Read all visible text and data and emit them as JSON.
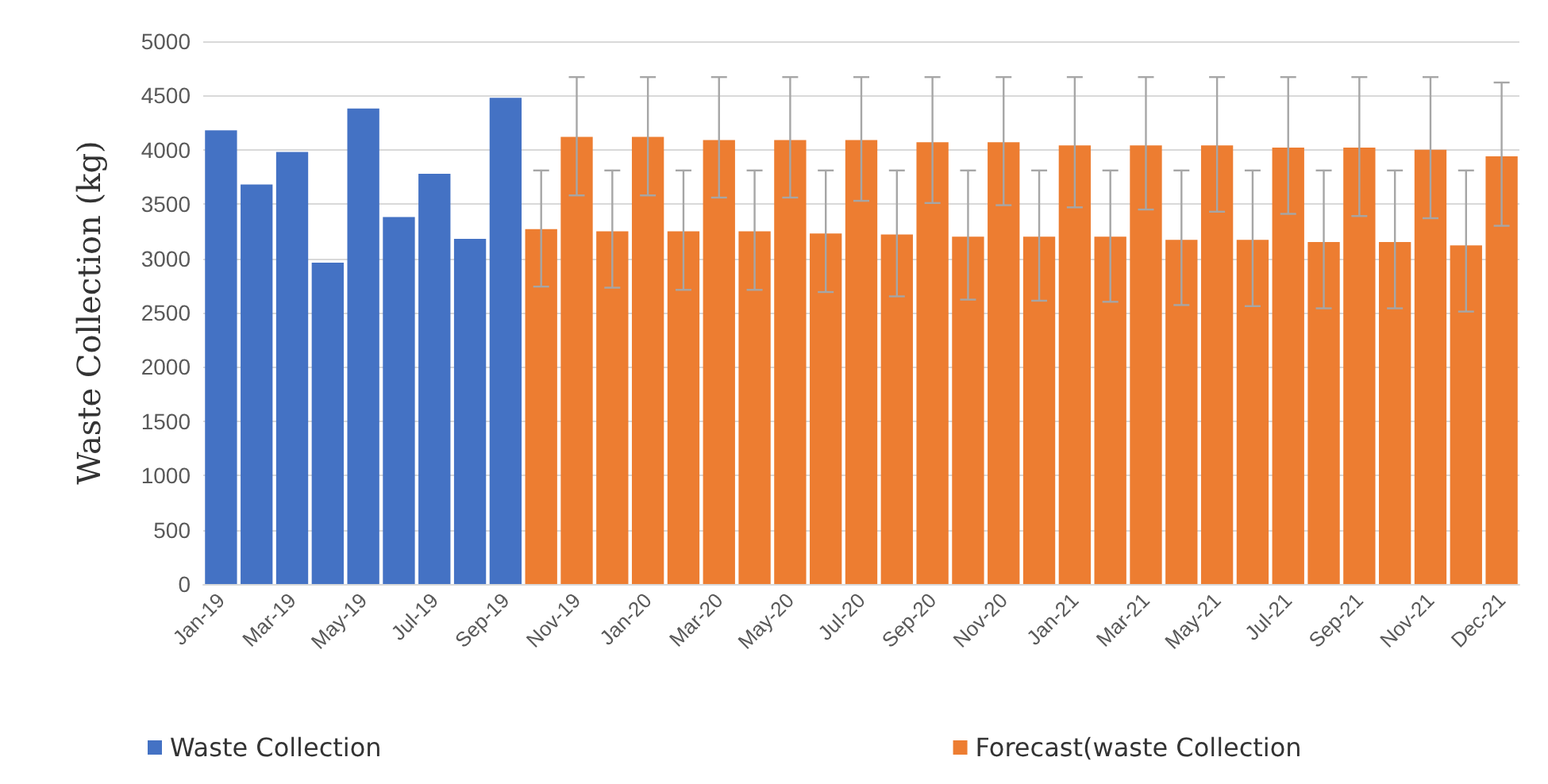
{
  "chart_data": {
    "type": "bar",
    "ylabel": "Waste Collection (kg)",
    "categories": [
      "Jan-19",
      null,
      "Mar-19",
      null,
      "May-19",
      null,
      "Jul-19",
      null,
      "Sep-19",
      null,
      "Nov-19",
      null,
      "Jan-20",
      null,
      "Mar-20",
      null,
      "May-20",
      null,
      "Jul-20",
      null,
      "Sep-20",
      null,
      "Nov-20",
      null,
      "Jan-21",
      null,
      "Mar-21",
      null,
      "May-21",
      null,
      "Jul-21",
      null,
      "Sep-21",
      null,
      "Nov-21",
      null,
      "Dec-21"
    ],
    "series": [
      {
        "name": "Waste Collection",
        "color": "#4472c4",
        "values": [
          4180,
          3680,
          3980,
          2960,
          4380,
          3380,
          3780,
          3180,
          4480,
          null,
          null,
          null,
          null,
          null,
          null,
          null,
          null,
          null,
          null,
          null,
          null,
          null,
          null,
          null,
          null,
          null,
          null,
          null,
          null,
          null,
          null,
          null,
          null,
          null,
          null,
          null,
          null
        ]
      },
      {
        "name": "Forecast(waste Collection",
        "color": "#ed7d31",
        "values": [
          null,
          null,
          null,
          null,
          null,
          null,
          null,
          null,
          null,
          3270,
          4120,
          3250,
          4120,
          3250,
          4090,
          3250,
          4090,
          3230,
          4090,
          3220,
          4070,
          3200,
          4070,
          3200,
          4040,
          3200,
          4040,
          3170,
          4040,
          3170,
          4020,
          3150,
          4020,
          3150,
          4000,
          3120,
          3940
        ],
        "errors": [
          null,
          null,
          null,
          null,
          null,
          null,
          null,
          null,
          null,
          [
            2740,
            3810
          ],
          [
            3580,
            4670
          ],
          [
            2730,
            3810
          ],
          [
            3580,
            4670
          ],
          [
            2710,
            3810
          ],
          [
            3560,
            4670
          ],
          [
            2710,
            3810
          ],
          [
            3560,
            4670
          ],
          [
            2690,
            3810
          ],
          [
            3530,
            4670
          ],
          [
            2650,
            3810
          ],
          [
            3510,
            4670
          ],
          [
            2620,
            3810
          ],
          [
            3490,
            4670
          ],
          [
            2610,
            3810
          ],
          [
            3470,
            4670
          ],
          [
            2600,
            3810
          ],
          [
            3450,
            4670
          ],
          [
            2570,
            3810
          ],
          [
            3430,
            4670
          ],
          [
            2560,
            3810
          ],
          [
            3410,
            4670
          ],
          [
            2540,
            3810
          ],
          [
            3390,
            4670
          ],
          [
            2540,
            3810
          ],
          [
            3370,
            4670
          ],
          [
            2510,
            3810
          ],
          [
            3300,
            4620
          ]
        ]
      }
    ],
    "ylim": [
      0,
      5000
    ],
    "yticks": [
      0,
      500,
      1000,
      1500,
      2000,
      2500,
      3000,
      3500,
      4000,
      4500,
      5000
    ],
    "grid": "y",
    "legend": "bottom left"
  }
}
